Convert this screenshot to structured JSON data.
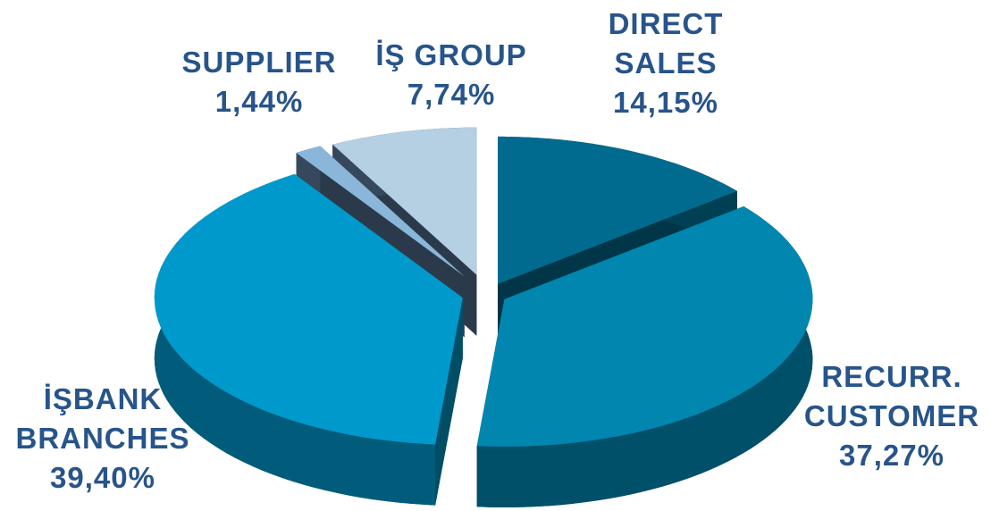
{
  "chart_data": {
    "type": "pie",
    "categories": [
      "DIRECT SALES",
      "RECURR. CUSTOMER",
      "İŞBANK BRANCHES",
      "SUPPLIER",
      "İŞ GROUP"
    ],
    "values": [
      14.15,
      37.27,
      39.4,
      1.44,
      7.74
    ],
    "value_labels": [
      "14,15%",
      "37,27%",
      "39,40%",
      "1,44%",
      "7,74%"
    ],
    "colors": [
      "#006b8e",
      "#0086af",
      "#0099cc",
      "#8ab6d9",
      "#b5cfe3"
    ]
  }
}
